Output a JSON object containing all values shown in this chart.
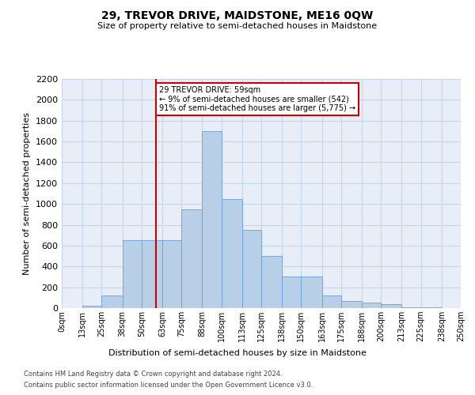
{
  "title": "29, TREVOR DRIVE, MAIDSTONE, ME16 0QW",
  "subtitle": "Size of property relative to semi-detached houses in Maidstone",
  "xlabel": "Distribution of semi-detached houses by size in Maidstone",
  "ylabel": "Number of semi-detached properties",
  "annotation_title": "29 TREVOR DRIVE: 59sqm",
  "annotation_line1": "← 9% of semi-detached houses are smaller (542)",
  "annotation_line2": "91% of semi-detached houses are larger (5,775) →",
  "property_size": 59,
  "bar_color": "#b8cfe8",
  "bar_edge_color": "#6a9fd8",
  "vline_color": "#cc0000",
  "annotation_box_color": "#ffffff",
  "annotation_box_edge": "#cc0000",
  "grid_color": "#c8d4e8",
  "background_color": "#e8eef8",
  "bin_edges": [
    0,
    13,
    25,
    38,
    50,
    63,
    75,
    88,
    100,
    113,
    125,
    138,
    150,
    163,
    175,
    188,
    200,
    213,
    225,
    238,
    250
  ],
  "bin_labels": [
    "0sqm",
    "13sqm",
    "25sqm",
    "38sqm",
    "50sqm",
    "63sqm",
    "75sqm",
    "88sqm",
    "100sqm",
    "113sqm",
    "125sqm",
    "138sqm",
    "150sqm",
    "163sqm",
    "175sqm",
    "188sqm",
    "200sqm",
    "213sqm",
    "225sqm",
    "238sqm",
    "250sqm"
  ],
  "counts": [
    2,
    25,
    120,
    650,
    650,
    650,
    950,
    1700,
    1050,
    750,
    500,
    300,
    300,
    120,
    65,
    50,
    35,
    10,
    5,
    3
  ],
  "ylim": [
    0,
    2200
  ],
  "yticks": [
    0,
    200,
    400,
    600,
    800,
    1000,
    1200,
    1400,
    1600,
    1800,
    2000,
    2200
  ],
  "footer1": "Contains HM Land Registry data © Crown copyright and database right 2024.",
  "footer2": "Contains public sector information licensed under the Open Government Licence v3.0."
}
